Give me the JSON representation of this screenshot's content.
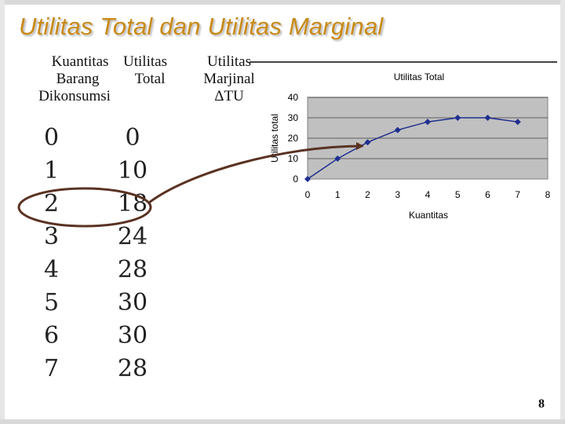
{
  "slide": {
    "title": "Utilitas Total dan Utilitas Marginal",
    "page_number": "8"
  },
  "table": {
    "header_qty_1": "Kuantitas",
    "header_qty_2": "Barang",
    "header_qty_3": "Dikonsumsi",
    "header_tu_1": "Utilitas",
    "header_tu_2": "Total",
    "header_mu_1": "Utilitas",
    "header_mu_2": "Marjinal",
    "header_mu_3": "ΔTU",
    "quantities": [
      "0",
      "1",
      "2",
      "3",
      "4",
      "5",
      "6",
      "7"
    ],
    "total_utilities": [
      "0",
      "10",
      "18",
      "24",
      "28",
      "30",
      "30",
      "28"
    ]
  },
  "chart_data": {
    "type": "line",
    "title": "Utilitas Total",
    "xlabel": "Kuantitas",
    "ylabel": "Utilitas total",
    "x": [
      0,
      1,
      2,
      3,
      4,
      5,
      6,
      7
    ],
    "series": [
      {
        "values": [
          0,
          10,
          18,
          24,
          28,
          30,
          30,
          28
        ]
      }
    ],
    "xlim": [
      0,
      8
    ],
    "ylim": [
      0,
      40
    ],
    "x_ticks": [
      "0",
      "1",
      "2",
      "3",
      "4",
      "5",
      "6",
      "7",
      "8"
    ],
    "y_ticks": [
      "0",
      "10",
      "20",
      "30",
      "40"
    ],
    "grid": true,
    "legend": "none",
    "plot_background": "#c0c0c0",
    "line_color": "#1f2f8f"
  },
  "colors": {
    "title": "#c98a18",
    "annotation": "#5a3222"
  }
}
